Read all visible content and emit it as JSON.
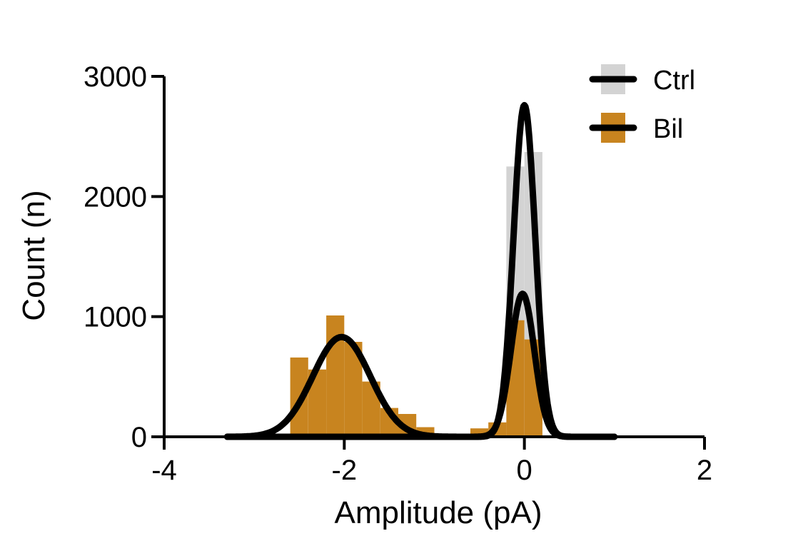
{
  "chart_data": {
    "type": "bar",
    "xlabel": "Amplitude (pA)",
    "ylabel": "Count (n)",
    "xlim": [
      -4,
      2
    ],
    "ylim": [
      0,
      3000
    ],
    "x_ticks": [
      "-4",
      "-2",
      "0",
      "2"
    ],
    "y_ticks": [
      "0",
      "1000",
      "2000",
      "3000"
    ],
    "grid": false,
    "legend_position": "top-right",
    "bin_width": 0.2,
    "series": [
      {
        "name": "Ctrl",
        "color": "#d3d3d3",
        "bins": [
          {
            "x": -0.2,
            "y": 2250
          },
          {
            "x": 0.0,
            "y": 2370
          }
        ],
        "fit": {
          "type": "gaussian",
          "amplitude": 2760,
          "mean": 0.0,
          "sd": 0.12
        }
      },
      {
        "name": "Bil",
        "color": "#c8841f",
        "bins": [
          {
            "x": -2.6,
            "y": 660
          },
          {
            "x": -2.4,
            "y": 560
          },
          {
            "x": -2.2,
            "y": 1010
          },
          {
            "x": -2.0,
            "y": 790
          },
          {
            "x": -1.8,
            "y": 460
          },
          {
            "x": -1.6,
            "y": 240
          },
          {
            "x": -1.4,
            "y": 190
          },
          {
            "x": -1.2,
            "y": 80
          },
          {
            "x": -1.0,
            "y": 15
          },
          {
            "x": -0.8,
            "y": 10
          },
          {
            "x": -0.6,
            "y": 70
          },
          {
            "x": -0.4,
            "y": 120
          },
          {
            "x": -0.2,
            "y": 970
          },
          {
            "x": 0.0,
            "y": 810
          }
        ],
        "fits": [
          {
            "type": "gaussian",
            "amplitude": 830,
            "mean": -2.03,
            "sd": 0.32
          },
          {
            "type": "gaussian",
            "amplitude": 1190,
            "mean": -0.02,
            "sd": 0.13
          }
        ]
      }
    ],
    "curve_range": [
      -3.3,
      1.0
    ]
  }
}
